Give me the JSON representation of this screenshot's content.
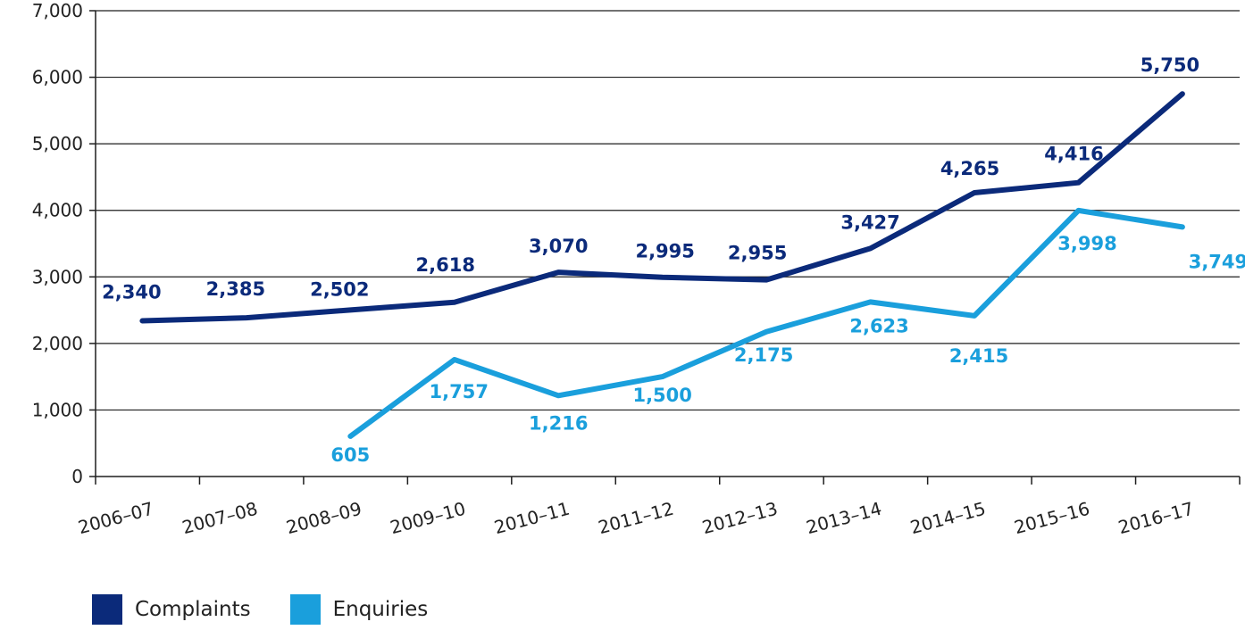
{
  "chart_data": {
    "type": "line",
    "categories": [
      "2006–07",
      "2007–08",
      "2008–09",
      "2009–10",
      "2010–11",
      "2011–12",
      "2012–13",
      "2013–14",
      "2014–15",
      "2015–16",
      "2016–17"
    ],
    "series": [
      {
        "name": "Complaints",
        "color": "#0b2a7a",
        "values": [
          2340,
          2385,
          2502,
          2618,
          3070,
          2995,
          2955,
          3427,
          4265,
          4416,
          5750
        ],
        "labels": [
          "2,340",
          "2,385",
          "2,502",
          "2,618",
          "3,070",
          "2,995",
          "2,955",
          "3,427",
          "4,265",
          "4,416",
          "5,750"
        ]
      },
      {
        "name": "Enquiries",
        "color": "#1a9fdc",
        "values": [
          null,
          null,
          605,
          1757,
          1216,
          1500,
          2175,
          2623,
          2415,
          3998,
          3749
        ],
        "labels": [
          null,
          null,
          "605",
          "1,757",
          "1,216",
          "1,500",
          "2,175",
          "2,623",
          "2,415",
          "3,998",
          "3,749"
        ]
      }
    ],
    "y_ticks": [
      0,
      1000,
      2000,
      3000,
      4000,
      5000,
      6000,
      7000
    ],
    "y_tick_labels": [
      "0",
      "1,000",
      "2,000",
      "3,000",
      "4,000",
      "5,000",
      "6,000",
      "7,000"
    ],
    "ylim": [
      0,
      7000
    ],
    "grid": true,
    "legend_position": "bottom-left"
  }
}
